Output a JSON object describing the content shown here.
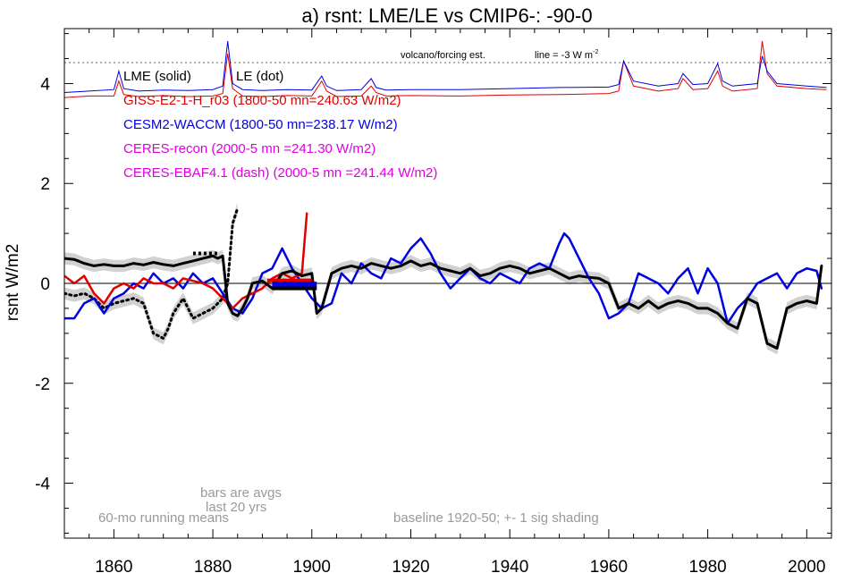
{
  "chart_data": {
    "type": "line",
    "title": "a) rsnt: LME/LE vs CMIP6-: -90-0",
    "xlabel": "",
    "ylabel": "rsnt W/m2",
    "xlim": [
      1850,
      2005
    ],
    "ylim": [
      -5.1,
      5.1
    ],
    "grid": false,
    "zero_line": true,
    "x_ticks": [
      1860,
      1880,
      1900,
      1920,
      1940,
      1960,
      1980,
      2000
    ],
    "y_ticks": [
      4,
      2,
      0,
      -2,
      -4
    ],
    "y_tick_labels": [
      "4",
      "2",
      "0",
      "-2",
      "-4"
    ],
    "legend": [
      {
        "text": "LME (solid)",
        "color": "#000000"
      },
      {
        "text": "LE (dot)",
        "color": "#000000"
      },
      {
        "text": "GISS-E2-1-H_r03 (1800-50 mn=240.63 W/m2)",
        "color": "#e00000"
      },
      {
        "text": "CESM2-WACCM (1800-50 mn=238.17 W/m2)",
        "color": "#0000e0"
      },
      {
        "text": "CERES-recon (2000-5 mn =241.30 W/m2)",
        "color": "#e000e0"
      },
      {
        "text": "CERES-EBAF4.1 (dash) (2000-5 mn =241.44 W/m2)",
        "color": "#e000e0"
      }
    ],
    "annotations": {
      "volcano": "volcano/forcing est.",
      "line_note": "line = -3 W m",
      "line_note_sup": "-2",
      "bars_note_1": "bars are avgs",
      "bars_note_2": "last 20 yrs",
      "running_means": "60-mo running means",
      "baseline": "baseline 1920-50; +- 1 sig shading"
    },
    "colors": {
      "lme": "#000000",
      "giss": "#e00000",
      "cesm": "#0000e0",
      "ceres": "#e000e0",
      "shading": "#cccccc",
      "note": "#999999",
      "dotted_ref": "#666666"
    },
    "volcano_ref_level": 4.42,
    "series": [
      {
        "name": "LME (solid)",
        "color": "#000000",
        "x": [
          1850,
          1852,
          1854,
          1856,
          1858,
          1860,
          1862,
          1864,
          1866,
          1868,
          1870,
          1872,
          1874,
          1876,
          1878,
          1880,
          1881,
          1882,
          1883,
          1884,
          1885,
          1886,
          1887,
          1888,
          1890,
          1892,
          1894,
          1896,
          1898,
          1900,
          1901,
          1902,
          1904,
          1906,
          1908,
          1910,
          1912,
          1914,
          1916,
          1918,
          1920,
          1922,
          1924,
          1926,
          1928,
          1930,
          1932,
          1934,
          1936,
          1938,
          1940,
          1942,
          1944,
          1946,
          1948,
          1950,
          1952,
          1954,
          1956,
          1958,
          1960,
          1962,
          1964,
          1966,
          1968,
          1970,
          1972,
          1974,
          1976,
          1978,
          1980,
          1982,
          1984,
          1986,
          1988,
          1990,
          1992,
          1994,
          1996,
          1998,
          2000,
          2002,
          2003
        ],
        "y": [
          0.5,
          0.48,
          0.4,
          0.35,
          0.38,
          0.35,
          0.35,
          0.4,
          0.37,
          0.42,
          0.38,
          0.35,
          0.4,
          0.45,
          0.5,
          0.55,
          0.5,
          0.55,
          -0.4,
          -0.6,
          -0.65,
          -0.5,
          -0.3,
          0.0,
          0.05,
          -0.1,
          0.2,
          0.25,
          0.15,
          0.2,
          -0.6,
          -0.5,
          0.2,
          0.3,
          0.35,
          0.3,
          0.4,
          0.35,
          0.3,
          0.35,
          0.45,
          0.35,
          0.4,
          0.3,
          0.25,
          0.2,
          0.3,
          0.15,
          0.2,
          0.3,
          0.35,
          0.3,
          0.2,
          0.25,
          0.3,
          0.2,
          0.1,
          0.15,
          0.12,
          0.1,
          0.0,
          -0.5,
          -0.4,
          -0.5,
          -0.35,
          -0.5,
          -0.4,
          -0.35,
          -0.4,
          -0.5,
          -0.5,
          -0.6,
          -0.8,
          -0.9,
          -0.3,
          -0.4,
          -1.2,
          -1.3,
          -0.5,
          -0.4,
          -0.35,
          -0.4,
          0.35
        ]
      },
      {
        "name": "LE (dot)",
        "color": "#000000",
        "dash": "dot",
        "x": [
          1850,
          1852,
          1854,
          1856,
          1858,
          1860,
          1862,
          1864,
          1866,
          1868,
          1870,
          1871,
          1872,
          1874,
          1876,
          1878,
          1880,
          1882,
          1883,
          1884,
          1885
        ],
        "y": [
          -0.2,
          -0.25,
          -0.2,
          -0.3,
          -0.5,
          -0.4,
          -0.35,
          -0.3,
          -0.4,
          -1.0,
          -1.1,
          -0.9,
          -0.6,
          -0.3,
          -0.7,
          -0.6,
          -0.5,
          -0.3,
          0.0,
          1.2,
          1.5
        ]
      },
      {
        "name": "GISS-E2-1-H_r03 (1800-50 mn=240.63 W/m2)",
        "color": "#e00000",
        "x": [
          1850,
          1852,
          1854,
          1856,
          1858,
          1860,
          1862,
          1864,
          1866,
          1868,
          1870,
          1872,
          1874,
          1876,
          1878,
          1880,
          1882,
          1884,
          1886,
          1888,
          1890,
          1892,
          1894,
          1896,
          1898,
          1899
        ],
        "y": [
          0.15,
          0.0,
          0.15,
          -0.2,
          -0.4,
          -0.1,
          0.0,
          -0.1,
          0.1,
          0.0,
          0.0,
          -0.1,
          0.1,
          0.05,
          0.0,
          -0.1,
          -0.3,
          -0.5,
          -0.3,
          -0.2,
          -0.1,
          0.1,
          0.2,
          0.1,
          0.2,
          1.4
        ]
      },
      {
        "name": "CESM2-WACCM (1800-50 mn=238.17 W/m2)",
        "color": "#0000e0",
        "x": [
          1850,
          1852,
          1854,
          1856,
          1858,
          1860,
          1862,
          1864,
          1866,
          1868,
          1870,
          1872,
          1874,
          1876,
          1878,
          1880,
          1882,
          1884,
          1886,
          1888,
          1890,
          1892,
          1894,
          1896,
          1898,
          1900,
          1902,
          1904,
          1906,
          1908,
          1910,
          1912,
          1914,
          1916,
          1918,
          1920,
          1922,
          1924,
          1926,
          1928,
          1930,
          1932,
          1934,
          1936,
          1938,
          1940,
          1942,
          1944,
          1946,
          1948,
          1950,
          1951,
          1952,
          1954,
          1956,
          1958,
          1960,
          1962,
          1964,
          1966,
          1968,
          1970,
          1972,
          1974,
          1976,
          1978,
          1980,
          1982,
          1984,
          1986,
          1988,
          1990,
          1992,
          1994,
          1996,
          1998,
          2000,
          2002,
          2003
        ],
        "y": [
          -0.7,
          -0.7,
          -0.4,
          -0.3,
          -0.6,
          -0.3,
          -0.2,
          0.0,
          -0.1,
          0.2,
          0.0,
          0.1,
          -0.1,
          0.2,
          0.0,
          0.1,
          -0.2,
          -0.5,
          -0.6,
          -0.3,
          0.2,
          0.3,
          0.7,
          0.3,
          0.0,
          -0.3,
          -0.5,
          -0.4,
          0.2,
          0.0,
          0.4,
          0.2,
          0.1,
          0.5,
          0.4,
          0.7,
          0.9,
          0.6,
          0.2,
          -0.1,
          0.1,
          0.3,
          0.1,
          0.0,
          0.2,
          0.1,
          0.0,
          0.3,
          0.4,
          0.3,
          0.8,
          1.0,
          0.9,
          0.5,
          0.1,
          -0.2,
          -0.7,
          -0.6,
          -0.4,
          0.2,
          0.1,
          0.0,
          -0.2,
          0.1,
          0.3,
          -0.2,
          0.3,
          0.0,
          -0.8,
          -0.5,
          -0.3,
          0.0,
          0.1,
          0.2,
          -0.1,
          0.2,
          0.3,
          0.25,
          -0.1
        ]
      }
    ],
    "upper_panel": {
      "base_level": 3.85,
      "series": [
        {
          "name": "GISS-E2-1-H_r03 (1800-50 mn=240.63 W/m2)",
          "color": "#e00000",
          "x": [
            1850,
            1855,
            1860,
            1861,
            1862,
            1865,
            1870,
            1875,
            1880,
            1882,
            1883,
            1884,
            1886,
            1890,
            1895,
            1900,
            1902,
            1903,
            1905,
            1910,
            1912,
            1913,
            1915,
            1920,
            1930,
            1940,
            1950,
            1960,
            1962,
            1963,
            1965,
            1970,
            1974,
            1975,
            1977,
            1980,
            1982,
            1983,
            1985,
            1990,
            1991,
            1992,
            1994,
            2000,
            2004
          ],
          "y": [
            3.72,
            3.75,
            3.75,
            4.05,
            3.78,
            3.74,
            3.76,
            3.74,
            3.75,
            3.8,
            4.6,
            3.9,
            3.75,
            3.74,
            3.76,
            3.75,
            4.05,
            3.85,
            3.74,
            3.75,
            3.95,
            3.82,
            3.75,
            3.76,
            3.75,
            3.77,
            3.78,
            3.8,
            3.85,
            4.45,
            3.95,
            3.85,
            3.9,
            4.1,
            3.88,
            3.9,
            4.25,
            3.95,
            3.85,
            3.9,
            4.85,
            4.2,
            3.95,
            3.9,
            3.88
          ]
        },
        {
          "name": "CESM2-WACCM (1800-50 mn=238.17 W/m2)",
          "color": "#0000e0",
          "x": [
            1850,
            1855,
            1860,
            1861,
            1862,
            1865,
            1870,
            1875,
            1880,
            1882,
            1883,
            1884,
            1886,
            1890,
            1895,
            1900,
            1902,
            1903,
            1905,
            1910,
            1912,
            1913,
            1915,
            1920,
            1930,
            1940,
            1950,
            1960,
            1962,
            1963,
            1965,
            1970,
            1974,
            1975,
            1977,
            1980,
            1982,
            1983,
            1985,
            1990,
            1991,
            1992,
            1994,
            2000,
            2004
          ],
          "y": [
            3.82,
            3.85,
            3.88,
            4.25,
            3.9,
            3.85,
            3.87,
            3.86,
            3.88,
            3.95,
            4.85,
            4.0,
            3.88,
            3.86,
            3.88,
            3.87,
            4.15,
            3.95,
            3.86,
            3.88,
            4.1,
            3.92,
            3.87,
            3.88,
            3.88,
            3.9,
            3.92,
            3.93,
            3.98,
            4.45,
            4.05,
            3.95,
            4.0,
            4.2,
            3.98,
            4.0,
            4.4,
            4.05,
            3.95,
            4.0,
            4.55,
            4.25,
            4.0,
            3.95,
            3.92
          ]
        }
      ]
    }
  }
}
